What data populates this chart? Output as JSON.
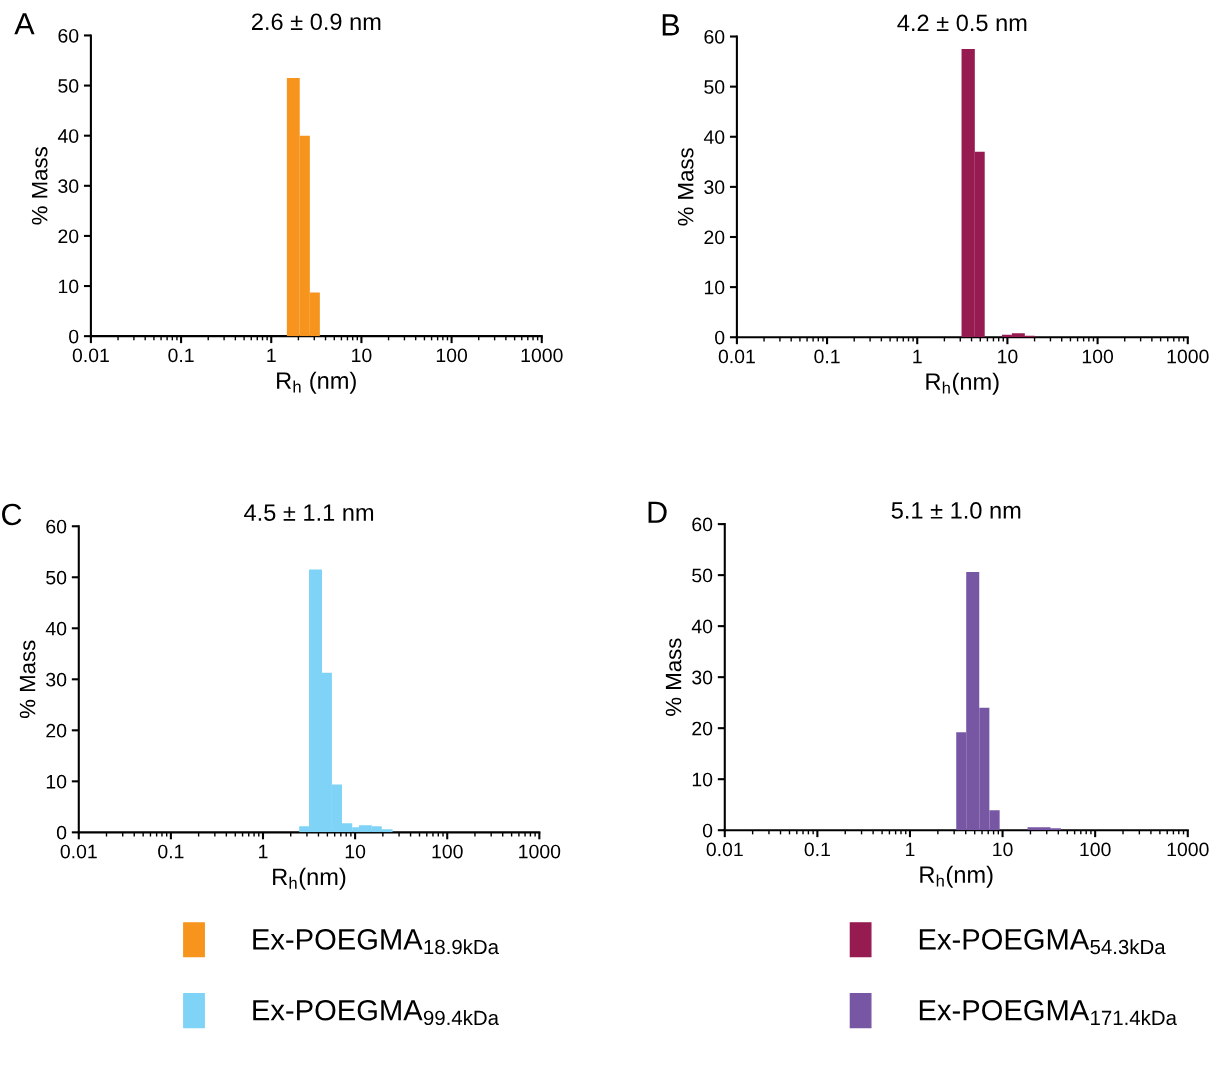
{
  "chart_data": [
    {
      "type": "histogram",
      "title": "2.6 ± 0.9 nm",
      "xlabel": "R$_{h}$ (nm)",
      "ylabel": "% Mass",
      "annotations": [
        "A"
      ],
      "log": "x",
      "xlim": [
        0.01,
        1000
      ],
      "xticks": [
        0.01,
        0.1,
        1,
        10,
        100,
        1000
      ],
      "ylim": [
        0,
        60
      ],
      "yticks": [
        0,
        10,
        20,
        30,
        40,
        50,
        60
      ],
      "legend": "bottom",
      "grid": false,
      "bins": [
        1.49,
        2.07,
        2.68,
        3.46
      ],
      "series": [
        {
          "name": "Ex-POEGMA$_{18.9kDa}$",
          "color": "#f7941d",
          "values": [
            51.5,
            40,
            8.7
          ]
        }
      ]
    },
    {
      "type": "histogram",
      "title": "4.2 ± 0.5 nm",
      "xlabel": "R$_{h}$(nm)",
      "ylabel": "% Mass",
      "annotations": [
        "B"
      ],
      "log": "x",
      "xlim": [
        0.01,
        1000
      ],
      "xticks": [
        0.01,
        0.1,
        1,
        10,
        100,
        1000
      ],
      "ylim": [
        0,
        60
      ],
      "yticks": [
        0,
        10,
        20,
        30,
        40,
        50,
        60
      ],
      "legend": "bottom",
      "grid": false,
      "bins": [
        3.1,
        4.35,
        5.6,
        8.7,
        11.2,
        15.6,
        20
      ],
      "series": [
        {
          "name": "Ex-POEGMA$_{54.3kDa}$",
          "color": "#961b50",
          "values": [
            57.5,
            37,
            0,
            0.5,
            0.8,
            0.3
          ]
        }
      ]
    },
    {
      "type": "histogram",
      "title": "4.5 ± 1.1 nm",
      "xlabel": "R$_{h}$(nm)",
      "ylabel": "% Mass",
      "annotations": [
        "C"
      ],
      "log": "x",
      "xlim": [
        0.01,
        1000
      ],
      "xticks": [
        0.01,
        0.1,
        1,
        10,
        100,
        1000
      ],
      "ylim": [
        0,
        60
      ],
      "yticks": [
        0,
        10,
        20,
        30,
        40,
        50,
        60
      ],
      "legend": "bottom",
      "grid": false,
      "bins": [
        2.47,
        3.16,
        4.37,
        5.6,
        7.2,
        9.3,
        11,
        15.2,
        19.5,
        25.5
      ],
      "series": [
        {
          "name": "Ex-POEGMA$_{99.4kDa}$",
          "color": "#7fd3f7",
          "values": [
            1.2,
            51.5,
            31.3,
            9.4,
            1.8,
            1.0,
            1.4,
            1.2,
            0.6
          ]
        }
      ]
    },
    {
      "type": "histogram",
      "title": "5.1 ± 1.0 nm",
      "xlabel": "R$_{h}$(nm)",
      "ylabel": "% Mass",
      "annotations": [
        "D"
      ],
      "log": "x",
      "xlim": [
        0.01,
        1000
      ],
      "xticks": [
        0.01,
        0.1,
        1,
        10,
        100,
        1000
      ],
      "ylim": [
        0,
        60
      ],
      "yticks": [
        0,
        10,
        20,
        30,
        40,
        50,
        60
      ],
      "legend": "bottom",
      "grid": false,
      "bins": [
        3.16,
        4.05,
        5.6,
        7.2,
        9.3,
        18.6,
        33,
        42.7
      ],
      "series": [
        {
          "name": "Ex-POEGMA$_{171.4kDa}$",
          "color": "#7757a4",
          "values": [
            19.2,
            50.6,
            24,
            3.9,
            0,
            0.6,
            0.4
          ]
        }
      ]
    }
  ]
}
